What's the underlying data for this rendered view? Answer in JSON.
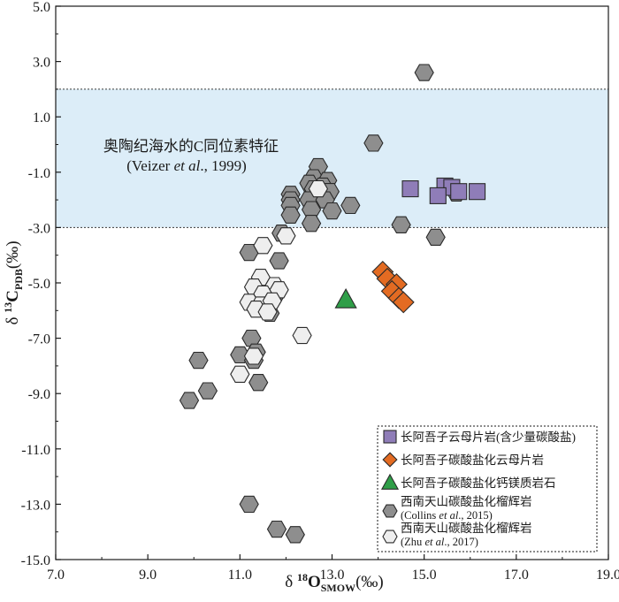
{
  "chart_data": {
    "type": "scatter",
    "xlim": [
      7.0,
      19.0
    ],
    "ylim": [
      -15.0,
      5.0
    ],
    "x_ticks": [
      "7.0",
      "9.0",
      "11.0",
      "13.0",
      "15.0",
      "17.0",
      "19.0"
    ],
    "y_ticks": [
      "5.0",
      "3.0",
      "1.0",
      "-1.0",
      "-3.0",
      "-5.0",
      "-7.0",
      "-9.0",
      "-11.0",
      "-13.0",
      "-15.0"
    ],
    "xlabel": {
      "prefix": "δ ",
      "sup": "18",
      "main": "O",
      "sub": "SMOW",
      "suffix": "(‰)"
    },
    "ylabel": {
      "prefix": "δ ",
      "sup": "13",
      "main": "C",
      "sub": "PDB",
      "suffix": "(‰)"
    },
    "band": {
      "y_range": [
        -3.0,
        2.0
      ],
      "color": "#dcedf8",
      "label_line1": "奥陶纪海水的C同位素特征",
      "label_line2_pre": "(Veizer ",
      "label_line2_em": "et al",
      "label_line2_post": "., 1999)"
    },
    "legend": {
      "position": "bottom-right",
      "entries": [
        {
          "marker": "square",
          "color": "#8f7db8",
          "label": "长阿吾子云母片岩(含少量碳酸盐)"
        },
        {
          "marker": "diamond",
          "color": "#e36b22",
          "label": "长阿吾子碳酸盐化云母片岩"
        },
        {
          "marker": "triangle",
          "color": "#2f9e48",
          "label": "长阿吾子碳酸盐化钙镁质岩石"
        },
        {
          "marker": "hexagon",
          "color": "#8e8e8e",
          "label": "西南天山碳酸盐化榴辉岩",
          "ref_pre": "(Collins ",
          "ref_em": "et al",
          "ref_post": "., 2015)"
        },
        {
          "marker": "hexagon",
          "color": "#eeeeee",
          "label": "西南天山碳酸盐化榴辉岩",
          "ref_pre": "(Zhu ",
          "ref_em": "et al",
          "ref_post": "., 2017)"
        }
      ]
    },
    "series": [
      {
        "marker": "hexagon",
        "color": "#8e8e8e",
        "points": [
          [
            15.0,
            2.6
          ],
          [
            13.9,
            0.05
          ],
          [
            12.7,
            -0.8
          ],
          [
            12.6,
            -1.2
          ],
          [
            12.9,
            -1.3
          ],
          [
            12.5,
            -1.4
          ],
          [
            12.8,
            -1.5
          ],
          [
            12.6,
            -1.6
          ],
          [
            12.95,
            -1.7
          ],
          [
            12.7,
            -1.8
          ],
          [
            12.1,
            -1.8
          ],
          [
            12.1,
            -2.0
          ],
          [
            12.5,
            -2.0
          ],
          [
            12.85,
            -2.0
          ],
          [
            12.1,
            -2.2
          ],
          [
            13.4,
            -2.2
          ],
          [
            12.55,
            -2.35
          ],
          [
            13.0,
            -2.4
          ],
          [
            12.1,
            -2.55
          ],
          [
            12.55,
            -2.85
          ],
          [
            14.5,
            -2.9
          ],
          [
            15.7,
            -1.75
          ],
          [
            15.25,
            -3.35
          ],
          [
            11.9,
            -3.2
          ],
          [
            11.2,
            -3.9
          ],
          [
            11.85,
            -4.2
          ],
          [
            11.75,
            -5.5
          ],
          [
            11.65,
            -6.1
          ],
          [
            11.25,
            -7.0
          ],
          [
            11.35,
            -7.5
          ],
          [
            11.0,
            -7.6
          ],
          [
            11.3,
            -7.8
          ],
          [
            10.1,
            -7.8
          ],
          [
            11.4,
            -8.6
          ],
          [
            10.3,
            -8.9
          ],
          [
            9.9,
            -9.25
          ],
          [
            11.2,
            -13.0
          ],
          [
            11.8,
            -13.9
          ],
          [
            12.2,
            -14.1
          ]
        ]
      },
      {
        "marker": "hexagon",
        "color": "#eeeeee",
        "points": [
          [
            12.7,
            -1.6
          ],
          [
            11.5,
            -3.65
          ],
          [
            12.0,
            -3.3
          ],
          [
            11.45,
            -4.8
          ],
          [
            11.3,
            -5.15
          ],
          [
            11.75,
            -5.1
          ],
          [
            11.5,
            -5.4
          ],
          [
            11.85,
            -5.25
          ],
          [
            11.2,
            -5.7
          ],
          [
            11.45,
            -5.8
          ],
          [
            11.7,
            -5.65
          ],
          [
            11.35,
            -5.95
          ],
          [
            11.6,
            -6.05
          ],
          [
            12.35,
            -6.9
          ],
          [
            11.3,
            -7.65
          ],
          [
            11.0,
            -8.3
          ]
        ]
      },
      {
        "marker": "square",
        "color": "#8f7db8",
        "points": [
          [
            14.7,
            -1.6
          ],
          [
            15.45,
            -1.5
          ],
          [
            15.6,
            -1.55
          ],
          [
            15.75,
            -1.7
          ],
          [
            16.15,
            -1.7
          ],
          [
            15.3,
            -1.85
          ]
        ]
      },
      {
        "marker": "diamond",
        "color": "#e36b22",
        "points": [
          [
            14.1,
            -4.6
          ],
          [
            14.2,
            -4.85
          ],
          [
            14.4,
            -5.05
          ],
          [
            14.3,
            -5.3
          ],
          [
            14.45,
            -5.55
          ],
          [
            14.55,
            -5.7
          ]
        ]
      },
      {
        "marker": "triangle",
        "color": "#2f9e48",
        "points": [
          [
            13.3,
            -5.6
          ]
        ]
      }
    ]
  }
}
